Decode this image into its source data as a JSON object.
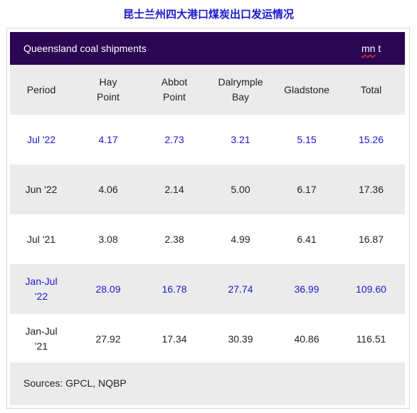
{
  "title": "昆士兰州四大港口煤炭出口发运情况",
  "header": {
    "title": "Queensland coal shipments",
    "unit_mn": "mn",
    "unit_t": " t"
  },
  "columns": [
    {
      "line1": "Period",
      "line2": ""
    },
    {
      "line1": "Hay",
      "line2": "Point"
    },
    {
      "line1": "Abbot",
      "line2": "Point"
    },
    {
      "line1": "Dalrymple",
      "line2": "Bay"
    },
    {
      "line1": "Gladstone",
      "line2": ""
    },
    {
      "line1": "Total",
      "line2": ""
    }
  ],
  "rows": [
    {
      "period_line1": "Jul '22",
      "period_line2": "",
      "values": [
        "4.17",
        "2.73",
        "3.21",
        "5.15",
        "15.26"
      ]
    },
    {
      "period_line1": "Jun '22",
      "period_line2": "",
      "values": [
        "4.06",
        "2.14",
        "5.00",
        "6.17",
        "17.36"
      ]
    },
    {
      "period_line1": "Jul '21",
      "period_line2": "",
      "values": [
        "3.08",
        "2.38",
        "4.99",
        "6.41",
        "16.87"
      ]
    },
    {
      "period_line1": "Jan-Jul",
      "period_line2": "'22",
      "values": [
        "28.09",
        "16.78",
        "27.74",
        "36.99",
        "109.60"
      ]
    },
    {
      "period_line1": "Jan-Jul",
      "period_line2": "'21",
      "values": [
        "27.92",
        "17.34",
        "30.39",
        "40.86",
        "116.51"
      ]
    }
  ],
  "footer": {
    "sources": "Sources: GPCL, NQBP"
  },
  "colors": {
    "header_bg": "#2b0652",
    "highlight_text": "#1a1acc",
    "shade_bg": "#ebebeb"
  }
}
